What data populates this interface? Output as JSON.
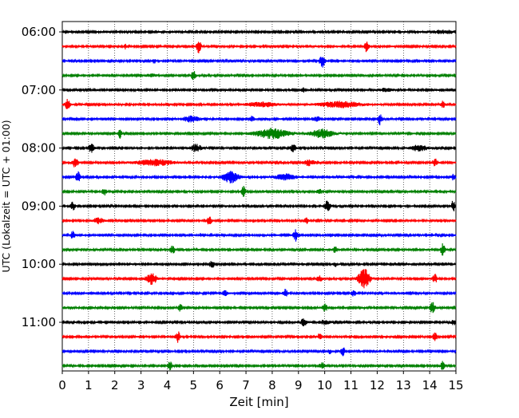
{
  "chart_data": {
    "type": "line",
    "title": "",
    "xlabel": "Zeit  [min]",
    "ylabel": "UTC (Lokalzeit = UTC + 01:00)",
    "xlim": [
      0,
      15
    ],
    "x_ticks": [
      0,
      1,
      2,
      3,
      4,
      5,
      6,
      7,
      8,
      9,
      10,
      11,
      12,
      13,
      14,
      15
    ],
    "x_tick_labels": [
      "0",
      "1",
      "2",
      "3",
      "4",
      "5",
      "6",
      "7",
      "8",
      "9",
      "10",
      "11",
      "12",
      "13",
      "14",
      "15"
    ],
    "y_tick_labels": [
      "06:00",
      "07:00",
      "08:00",
      "09:00",
      "10:00",
      "11:00"
    ],
    "y_tick_trace_index": [
      0,
      4,
      8,
      12,
      16,
      20
    ],
    "grid": "vertical dotted",
    "trace_interval_min": 15,
    "color_cycle": [
      "#000000",
      "#ff0000",
      "#0000ff",
      "#008000"
    ],
    "series": [
      {
        "start": "06:00",
        "color": "#000000",
        "events": [
          {
            "t": 14.5,
            "a": 0.2,
            "w": 0.6
          }
        ]
      },
      {
        "start": "06:15",
        "color": "#ff0000",
        "events": [
          {
            "t": 2.4,
            "a": 0.3,
            "w": 0.05
          },
          {
            "t": 5.2,
            "a": 0.9,
            "w": 0.08
          },
          {
            "t": 11.6,
            "a": 0.8,
            "w": 0.08
          }
        ]
      },
      {
        "start": "06:30",
        "color": "#0000ff",
        "events": [
          {
            "t": 3.5,
            "a": 0.3,
            "w": 0.06
          },
          {
            "t": 9.9,
            "a": 0.9,
            "w": 0.1
          }
        ]
      },
      {
        "start": "06:45",
        "color": "#008000",
        "events": [
          {
            "t": 5.0,
            "a": 0.7,
            "w": 0.08
          },
          {
            "t": 3.4,
            "a": 0.2,
            "w": 0.2
          }
        ]
      },
      {
        "start": "07:00",
        "color": "#000000",
        "events": [
          {
            "t": 9.2,
            "a": 0.3,
            "w": 0.1
          },
          {
            "t": 12.3,
            "a": 0.2,
            "w": 0.3
          }
        ]
      },
      {
        "start": "07:15",
        "color": "#ff0000",
        "events": [
          {
            "t": 0.2,
            "a": 0.8,
            "w": 0.08
          },
          {
            "t": 7.6,
            "a": 0.3,
            "w": 0.6
          },
          {
            "t": 10.6,
            "a": 0.4,
            "w": 0.8
          },
          {
            "t": 14.5,
            "a": 0.5,
            "w": 0.08
          }
        ]
      },
      {
        "start": "07:30",
        "color": "#0000ff",
        "events": [
          {
            "t": 4.9,
            "a": 0.4,
            "w": 0.3
          },
          {
            "t": 7.2,
            "a": 0.4,
            "w": 0.1
          },
          {
            "t": 9.7,
            "a": 0.3,
            "w": 0.2
          },
          {
            "t": 12.1,
            "a": 0.8,
            "w": 0.08
          }
        ]
      },
      {
        "start": "07:45",
        "color": "#008000",
        "events": [
          {
            "t": 2.2,
            "a": 0.6,
            "w": 0.06
          },
          {
            "t": 8.0,
            "a": 0.7,
            "w": 0.6
          },
          {
            "t": 9.9,
            "a": 0.6,
            "w": 0.4
          }
        ]
      },
      {
        "start": "08:00",
        "color": "#000000",
        "events": [
          {
            "t": 1.1,
            "a": 0.6,
            "w": 0.1
          },
          {
            "t": 5.1,
            "a": 0.5,
            "w": 0.2
          },
          {
            "t": 8.8,
            "a": 0.5,
            "w": 0.1
          },
          {
            "t": 13.6,
            "a": 0.4,
            "w": 0.3
          }
        ]
      },
      {
        "start": "08:15",
        "color": "#ff0000",
        "events": [
          {
            "t": 0.5,
            "a": 0.7,
            "w": 0.1
          },
          {
            "t": 3.5,
            "a": 0.4,
            "w": 0.7
          },
          {
            "t": 9.4,
            "a": 0.4,
            "w": 0.2
          },
          {
            "t": 14.2,
            "a": 0.5,
            "w": 0.1
          }
        ]
      },
      {
        "start": "08:30",
        "color": "#0000ff",
        "events": [
          {
            "t": 0.6,
            "a": 0.7,
            "w": 0.08
          },
          {
            "t": 6.4,
            "a": 0.8,
            "w": 0.3
          },
          {
            "t": 8.5,
            "a": 0.4,
            "w": 0.4
          },
          {
            "t": 14.9,
            "a": 0.4,
            "w": 0.08
          }
        ]
      },
      {
        "start": "08:45",
        "color": "#008000",
        "events": [
          {
            "t": 1.6,
            "a": 0.5,
            "w": 0.08
          },
          {
            "t": 6.9,
            "a": 0.7,
            "w": 0.08
          },
          {
            "t": 9.8,
            "a": 0.3,
            "w": 0.1
          }
        ]
      },
      {
        "start": "09:00",
        "color": "#000000",
        "events": [
          {
            "t": 0.4,
            "a": 0.6,
            "w": 0.08
          },
          {
            "t": 10.1,
            "a": 0.8,
            "w": 0.1
          },
          {
            "t": 14.9,
            "a": 0.9,
            "w": 0.06
          }
        ]
      },
      {
        "start": "09:15",
        "color": "#ff0000",
        "events": [
          {
            "t": 1.4,
            "a": 0.4,
            "w": 0.2
          },
          {
            "t": 5.6,
            "a": 0.6,
            "w": 0.08
          },
          {
            "t": 9.3,
            "a": 0.4,
            "w": 0.08
          }
        ]
      },
      {
        "start": "09:30",
        "color": "#0000ff",
        "events": [
          {
            "t": 0.4,
            "a": 0.5,
            "w": 0.08
          },
          {
            "t": 8.9,
            "a": 0.8,
            "w": 0.1
          }
        ]
      },
      {
        "start": "09:45",
        "color": "#008000",
        "events": [
          {
            "t": 4.2,
            "a": 0.5,
            "w": 0.1
          },
          {
            "t": 10.4,
            "a": 0.4,
            "w": 0.08
          },
          {
            "t": 14.5,
            "a": 0.8,
            "w": 0.08
          }
        ]
      },
      {
        "start": "10:00",
        "color": "#000000",
        "events": [
          {
            "t": 5.7,
            "a": 0.6,
            "w": 0.08
          },
          {
            "t": 10.4,
            "a": 0.3,
            "w": 0.08
          }
        ]
      },
      {
        "start": "10:15",
        "color": "#ff0000",
        "events": [
          {
            "t": 3.4,
            "a": 0.8,
            "w": 0.2
          },
          {
            "t": 9.8,
            "a": 0.4,
            "w": 0.1
          },
          {
            "t": 11.5,
            "a": 1.5,
            "w": 0.2
          },
          {
            "t": 14.2,
            "a": 0.6,
            "w": 0.08
          }
        ]
      },
      {
        "start": "10:30",
        "color": "#0000ff",
        "events": [
          {
            "t": 6.2,
            "a": 0.3,
            "w": 0.1
          },
          {
            "t": 8.5,
            "a": 0.5,
            "w": 0.08
          },
          {
            "t": 11.1,
            "a": 0.4,
            "w": 0.08
          }
        ]
      },
      {
        "start": "10:45",
        "color": "#008000",
        "events": [
          {
            "t": 4.5,
            "a": 0.5,
            "w": 0.08
          },
          {
            "t": 10.0,
            "a": 0.5,
            "w": 0.1
          },
          {
            "t": 14.1,
            "a": 0.8,
            "w": 0.1
          }
        ]
      },
      {
        "start": "11:00",
        "color": "#000000",
        "events": [
          {
            "t": 9.2,
            "a": 0.6,
            "w": 0.1
          },
          {
            "t": 10.0,
            "a": 0.3,
            "w": 0.2
          },
          {
            "t": 14.9,
            "a": 0.4,
            "w": 0.08
          }
        ]
      },
      {
        "start": "11:15",
        "color": "#ff0000",
        "events": [
          {
            "t": 4.4,
            "a": 0.8,
            "w": 0.08
          },
          {
            "t": 9.8,
            "a": 0.4,
            "w": 0.08
          },
          {
            "t": 14.2,
            "a": 0.6,
            "w": 0.08
          }
        ]
      },
      {
        "start": "11:30",
        "color": "#0000ff",
        "events": [
          {
            "t": 10.7,
            "a": 0.6,
            "w": 0.08
          },
          {
            "t": 10.2,
            "a": 0.3,
            "w": 0.08
          }
        ]
      },
      {
        "start": "11:45",
        "color": "#008000",
        "events": [
          {
            "t": 4.1,
            "a": 0.6,
            "w": 0.08
          },
          {
            "t": 9.9,
            "a": 0.4,
            "w": 0.1
          },
          {
            "t": 14.5,
            "a": 0.6,
            "w": 0.08
          }
        ]
      }
    ]
  }
}
